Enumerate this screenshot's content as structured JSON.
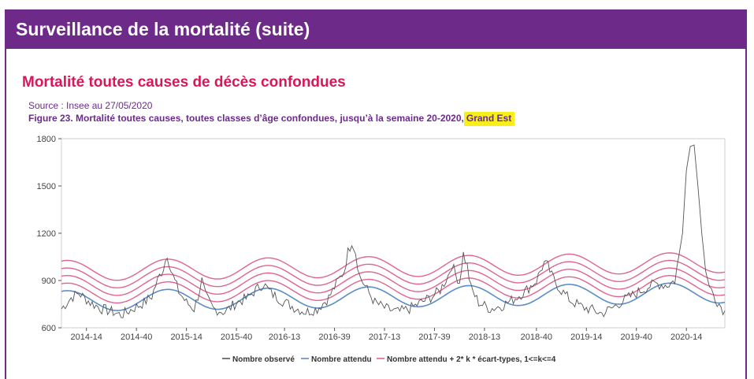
{
  "header": {
    "title": "Surveillance de la mortalité (suite)"
  },
  "section": {
    "title": "Mortalité toutes causes de décès confondues",
    "source": "Source : Insee au 27/05/2020",
    "figure_caption": "Figure 23. Mortalité toutes causes, toutes classes d’âge confondues, jusqu’à la semaine 20-2020",
    "figure_separator": ",",
    "figure_highlight": "Grand Est",
    "highlight_color": "#f6ef1a"
  },
  "colors": {
    "banner": "#6e2a89",
    "section_title": "#d6185a",
    "observed": "#555555",
    "expected": "#5b8dc9",
    "thresholds": "#e0648f"
  },
  "chart_data": {
    "type": "line",
    "x_label": "",
    "y_label": "",
    "ylim": [
      600,
      1800
    ],
    "yticks": [
      600,
      900,
      1200,
      1500,
      1800
    ],
    "xticks": [
      "2014-14",
      "2014-40",
      "2015-14",
      "2015-40",
      "2016-13",
      "2016-39",
      "2017-13",
      "2017-39",
      "2018-13",
      "2018-40",
      "2019-14",
      "2019-40",
      "2020-14"
    ],
    "xtick_weeks": [
      14,
      40,
      66,
      92,
      117,
      143,
      169,
      195,
      221,
      248,
      274,
      300,
      326
    ],
    "week_range": [
      1,
      346
    ],
    "grid": false,
    "legend_position": "bottom",
    "legend": [
      "Nombre observé",
      "Nombre attendu",
      "Nombre attendu + 2* k * écart-types, 1<=k<=4"
    ],
    "expected_model": {
      "baseline": 770,
      "baseline_growth_per_year": 8,
      "amplitude": 65,
      "peak_week_of_year": 4,
      "period_weeks": 52.18,
      "threshold_step": 48,
      "threshold_levels": [
        1,
        2,
        3,
        4
      ]
    },
    "observed_keypoints": [
      [
        1,
        720
      ],
      [
        6,
        790
      ],
      [
        10,
        820
      ],
      [
        16,
        760
      ],
      [
        22,
        720
      ],
      [
        28,
        700
      ],
      [
        32,
        680
      ],
      [
        38,
        720
      ],
      [
        44,
        760
      ],
      [
        48,
        800
      ],
      [
        50,
        870
      ],
      [
        52,
        930
      ],
      [
        54,
        980
      ],
      [
        56,
        1070
      ],
      [
        58,
        960
      ],
      [
        62,
        830
      ],
      [
        66,
        760
      ],
      [
        70,
        720
      ],
      [
        72,
        800
      ],
      [
        74,
        900
      ],
      [
        76,
        800
      ],
      [
        80,
        720
      ],
      [
        86,
        700
      ],
      [
        92,
        760
      ],
      [
        98,
        790
      ],
      [
        102,
        840
      ],
      [
        106,
        880
      ],
      [
        110,
        820
      ],
      [
        116,
        770
      ],
      [
        122,
        730
      ],
      [
        128,
        700
      ],
      [
        134,
        720
      ],
      [
        140,
        790
      ],
      [
        144,
        880
      ],
      [
        148,
        960
      ],
      [
        150,
        1080
      ],
      [
        152,
        1150
      ],
      [
        154,
        1080
      ],
      [
        156,
        930
      ],
      [
        160,
        840
      ],
      [
        164,
        760
      ],
      [
        170,
        720
      ],
      [
        176,
        700
      ],
      [
        182,
        720
      ],
      [
        188,
        760
      ],
      [
        194,
        800
      ],
      [
        198,
        840
      ],
      [
        202,
        930
      ],
      [
        204,
        1000
      ],
      [
        206,
        940
      ],
      [
        208,
        890
      ],
      [
        210,
        1070
      ],
      [
        212,
        990
      ],
      [
        214,
        850
      ],
      [
        218,
        760
      ],
      [
        224,
        720
      ],
      [
        230,
        740
      ],
      [
        236,
        780
      ],
      [
        242,
        830
      ],
      [
        248,
        900
      ],
      [
        250,
        960
      ],
      [
        252,
        1010
      ],
      [
        254,
        990
      ],
      [
        256,
        930
      ],
      [
        260,
        850
      ],
      [
        266,
        770
      ],
      [
        272,
        730
      ],
      [
        278,
        710
      ],
      [
        282,
        690
      ],
      [
        288,
        730
      ],
      [
        294,
        780
      ],
      [
        300,
        820
      ],
      [
        306,
        860
      ],
      [
        310,
        880
      ],
      [
        316,
        870
      ],
      [
        320,
        900
      ],
      [
        324,
        1200
      ],
      [
        326,
        1600
      ],
      [
        328,
        1750
      ],
      [
        330,
        1760
      ],
      [
        332,
        1500
      ],
      [
        334,
        1200
      ],
      [
        336,
        960
      ],
      [
        338,
        860
      ],
      [
        342,
        770
      ],
      [
        346,
        700
      ]
    ]
  }
}
